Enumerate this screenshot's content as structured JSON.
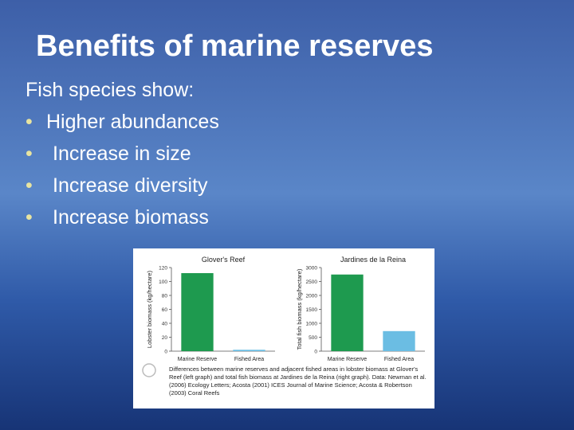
{
  "slide": {
    "title": "Benefits of marine reserves",
    "intro": "Fish species show:",
    "items": [
      "Higher abundances",
      "Increase in size",
      "Increase diversity",
      "Increase biomass"
    ],
    "caption": "Differences between marine reserves and adjacent fished areas in lobster biomass at Glover's Reef (left graph) and total fish biomass at Jardines de la Reina (right graph). Data: Newman et al. (2006) Ecology Letters; Acosta (2001) ICES Journal of Marine Science; Acosta & Robertson (2003) Coral Reefs"
  },
  "chart_data": [
    {
      "type": "bar",
      "title": "Glover's Reef",
      "y_label": "Lobster biomass (kg/hectare)",
      "categories": [
        "Marine Reserve",
        "Fished Area"
      ],
      "values": [
        112,
        2
      ],
      "colors": [
        "#1e9a4f",
        "#6bbde3"
      ],
      "ylim": [
        0,
        120
      ],
      "yticks": [
        0,
        20,
        40,
        60,
        80,
        100,
        120
      ]
    },
    {
      "type": "bar",
      "title": "Jardines de la Reina",
      "y_label": "Total fish biomass (kg/hectare)",
      "categories": [
        "Marine Reserve",
        "Fished Area"
      ],
      "values": [
        2750,
        720
      ],
      "colors": [
        "#1e9a4f",
        "#6bbde3"
      ],
      "ylim": [
        0,
        3000
      ],
      "yticks": [
        0,
        500,
        1000,
        1500,
        2000,
        2500,
        3000
      ]
    }
  ]
}
